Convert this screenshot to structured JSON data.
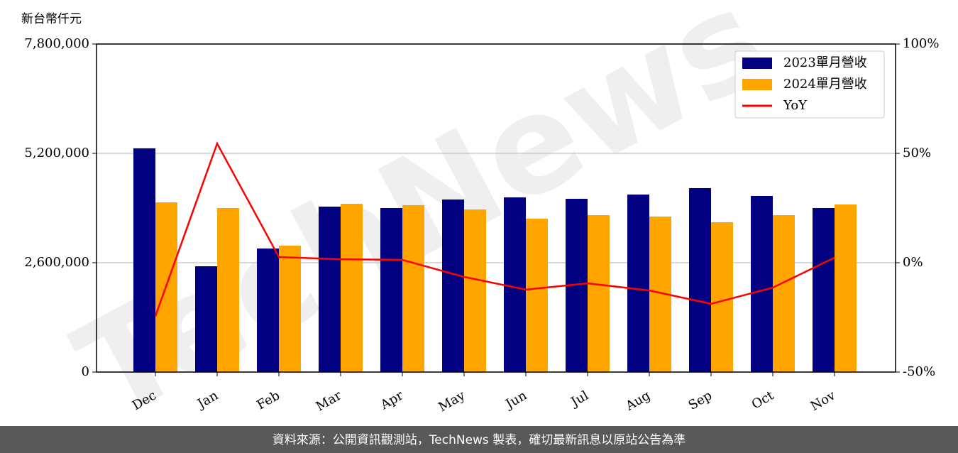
{
  "chart_data": {
    "type": "bar_line",
    "y_label": "新台幣仟元",
    "categories": [
      "Dec",
      "Jan",
      "Feb",
      "Mar",
      "Apr",
      "May",
      "Jun",
      "Jul",
      "Aug",
      "Sep",
      "Oct",
      "Nov"
    ],
    "series": [
      {
        "name": "2023單月營收",
        "type": "bar",
        "color": "#000080",
        "values": [
          5320000,
          2516000,
          2938000,
          3934000,
          3900000,
          4103000,
          4153000,
          4120000,
          4221000,
          4373000,
          4187000,
          3900000
        ]
      },
      {
        "name": "2024單月營收",
        "type": "bar",
        "color": "#ffa500",
        "values": [
          4035000,
          3900000,
          3005000,
          4001000,
          3968000,
          3866000,
          3647000,
          3731000,
          3697000,
          3562000,
          3731000,
          3984000
        ]
      },
      {
        "name": "YoY",
        "type": "line",
        "axis": "y2",
        "color": "#ff0000",
        "values": [
          -24.4,
          54.5,
          2.6,
          1.6,
          1.3,
          -6.5,
          -12.3,
          -9.4,
          -12.7,
          -18.8,
          -11.4,
          2.3
        ]
      }
    ],
    "ylim": [
      0,
      7800000
    ],
    "yticks": [
      0,
      {
        "value": 2600000,
        "label": "2,600,000"
      },
      {
        "value": 5200000,
        "label": "5,200,000"
      },
      {
        "value": 7800000,
        "label": "7,800,000"
      }
    ],
    "y2lim": [
      -50,
      100
    ],
    "y2ticks": [
      {
        "value": -50,
        "label": "-50%"
      },
      {
        "value": 0,
        "label": "0%"
      },
      {
        "value": 50,
        "label": "50%"
      },
      {
        "value": 100,
        "label": "100%"
      }
    ],
    "grid": true,
    "legend": "upper right",
    "watermark": "TechNews",
    "footer": "資料來源：公開資訊觀測站，TechNews 製表，確切最新訊息以原站公告為準"
  }
}
